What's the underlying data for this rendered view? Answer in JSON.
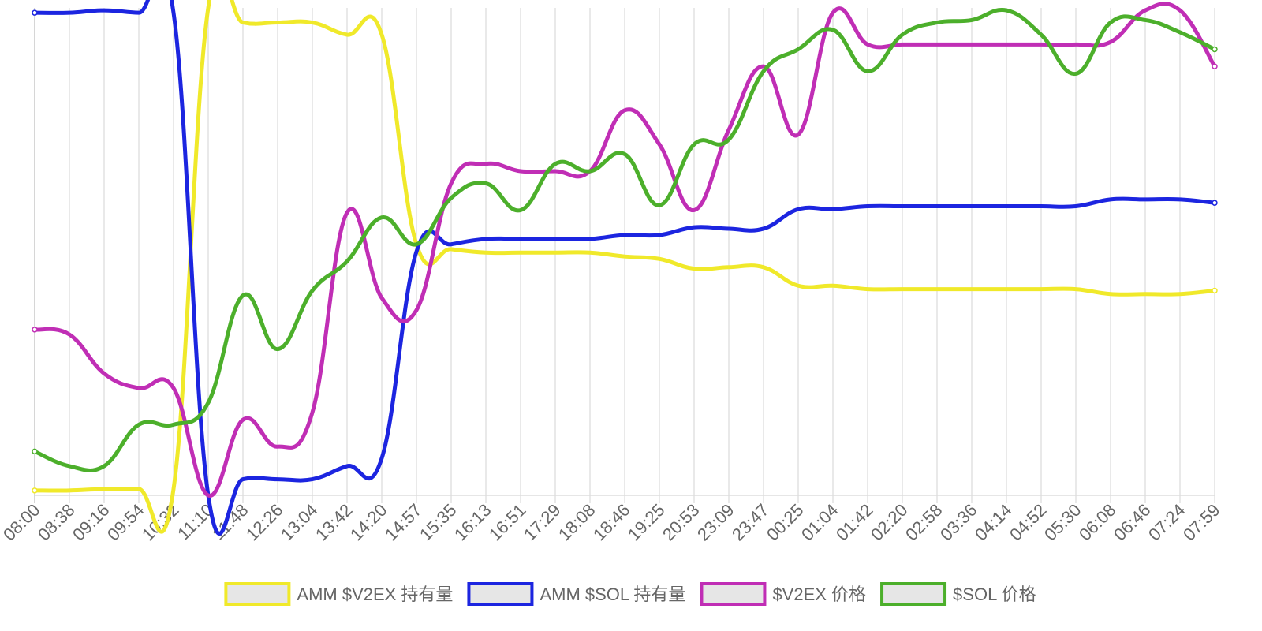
{
  "chart_data": {
    "type": "line",
    "x": [
      "08:00",
      "08:38",
      "09:16",
      "09:54",
      "10:32",
      "11:10",
      "11:48",
      "12:26",
      "13:04",
      "13:42",
      "14:20",
      "14:57",
      "15:35",
      "16:13",
      "16:51",
      "17:29",
      "18:08",
      "18:46",
      "19:25",
      "20:53",
      "23:09",
      "23:47",
      "00:25",
      "01:04",
      "01:42",
      "02:20",
      "02:58",
      "03:36",
      "04:14",
      "04:52",
      "05:30",
      "06:08",
      "06:46",
      "07:24",
      "07:59"
    ],
    "ylim": [
      0,
      100
    ],
    "y_axis_visible": false,
    "grid": "vertical",
    "legend_position": "bottom",
    "series": [
      {
        "name": "AMM $V2EX 持有量",
        "color": "#f0e92a",
        "values": [
          1,
          1,
          1.3,
          1.3,
          1.3,
          100,
          97,
          97,
          97,
          94.5,
          94.5,
          51.5,
          50.5,
          49.8,
          49.8,
          49.8,
          49.8,
          49,
          48.5,
          46.5,
          46.8,
          46.8,
          43,
          43,
          42.3,
          42.3,
          42.3,
          42.3,
          42.3,
          42.3,
          42.3,
          41.3,
          41.3,
          41.3,
          42
        ]
      },
      {
        "name": "AMM $SOL 持有量",
        "color": "#1c25e0",
        "values": [
          99,
          99,
          99.5,
          99,
          99,
          0,
          3.3,
          3.3,
          3.3,
          6,
          7.6,
          50,
          51.5,
          52.6,
          52.6,
          52.6,
          52.6,
          53.4,
          53.4,
          55,
          54.7,
          54.7,
          58.7,
          58.7,
          59.3,
          59.3,
          59.3,
          59.3,
          59.3,
          59.3,
          59.3,
          60.7,
          60.7,
          60.7,
          60
        ]
      },
      {
        "name": "$V2EX 价格",
        "color": "#c02eb5",
        "values": [
          34,
          33,
          25,
          22,
          22,
          0,
          15.5,
          10,
          17,
          58,
          40.5,
          38,
          64,
          68,
          66.5,
          66.5,
          66.5,
          79,
          72,
          58.5,
          75,
          88,
          74,
          99,
          92.5,
          92.5,
          92.5,
          92.5,
          92.5,
          92.5,
          92.5,
          93,
          99.5,
          99.5,
          88
        ]
      },
      {
        "name": "$SOL 价格",
        "color": "#4caf2b",
        "values": [
          9,
          6,
          6,
          14.5,
          14.5,
          19,
          41,
          30,
          42,
          48,
          57,
          51.5,
          61,
          64,
          58.5,
          68,
          66.5,
          70,
          59.5,
          72,
          73,
          87,
          91.5,
          95.5,
          87,
          94.5,
          97,
          97.5,
          99.5,
          94.5,
          86.5,
          97,
          97.5,
          95,
          91.5
        ]
      }
    ]
  }
}
